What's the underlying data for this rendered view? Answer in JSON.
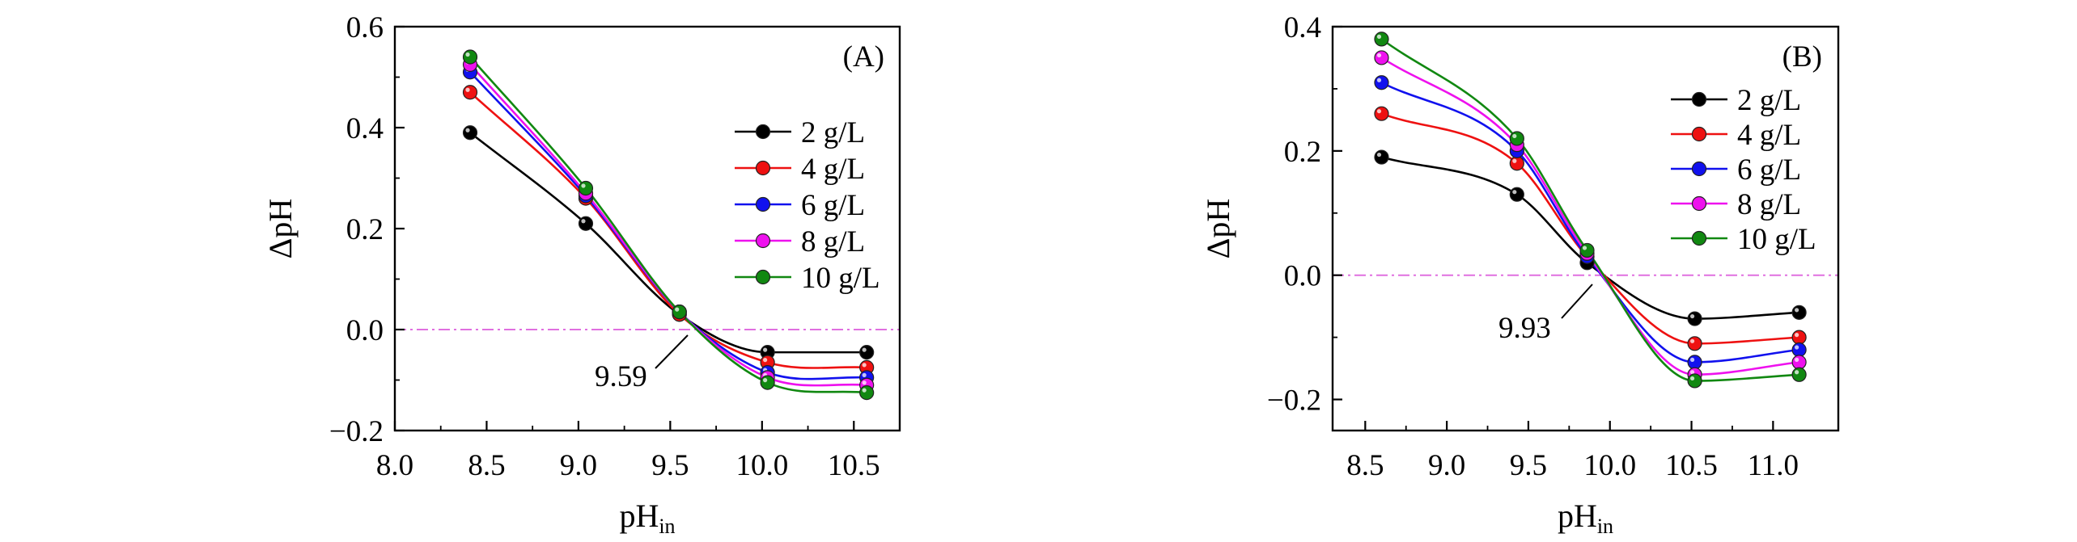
{
  "chart_data": [
    {
      "type": "line",
      "panel_label": "(A)",
      "xlabel": "pH",
      "xlabel_sub": "in",
      "ylabel": "ΔpH",
      "xlim": [
        8.0,
        10.75
      ],
      "ylim": [
        -0.2,
        0.6
      ],
      "xticks": [
        8.0,
        8.5,
        9.0,
        9.5,
        10.0,
        10.5
      ],
      "xtick_labels": [
        "8.0",
        "8.5",
        "9.0",
        "9.5",
        "10.0",
        "10.5"
      ],
      "yticks": [
        -0.2,
        0.0,
        0.2,
        0.4,
        0.6
      ],
      "ytick_labels": [
        "−0.2",
        "0.0",
        "0.2",
        "0.4",
        "0.6"
      ],
      "x": [
        8.41,
        9.04,
        9.55,
        10.03,
        10.57
      ],
      "series": [
        {
          "name": "2 g/L",
          "color": "#000000",
          "values": [
            0.39,
            0.21,
            0.03,
            -0.045,
            -0.045
          ]
        },
        {
          "name": "4 g/L",
          "color": "#ee1111",
          "values": [
            0.47,
            0.26,
            0.03,
            -0.065,
            -0.075
          ]
        },
        {
          "name": "6 g/L",
          "color": "#1111ee",
          "values": [
            0.51,
            0.265,
            0.035,
            -0.085,
            -0.095
          ]
        },
        {
          "name": "8 g/L",
          "color": "#ee11ee",
          "values": [
            0.525,
            0.27,
            0.035,
            -0.095,
            -0.11
          ]
        },
        {
          "name": "10 g/L",
          "color": "#118811",
          "values": [
            0.54,
            0.28,
            0.035,
            -0.105,
            -0.125
          ]
        }
      ],
      "reference_line": {
        "y": 0.0,
        "color": "#e070e0"
      },
      "annotation": {
        "text": "9.59",
        "x": 9.59,
        "y": 0.0
      },
      "legend_position": "right"
    },
    {
      "type": "line",
      "panel_label": "(B)",
      "xlabel": "pH",
      "xlabel_sub": "in",
      "ylabel": "ΔpH",
      "xlim": [
        8.3,
        11.4
      ],
      "ylim": [
        -0.25,
        0.4
      ],
      "xticks": [
        8.5,
        9.0,
        9.5,
        10.0,
        10.5,
        11.0
      ],
      "xtick_labels": [
        "8.5",
        "9.0",
        "9.5",
        "10.0",
        "10.5",
        "11.0"
      ],
      "yticks": [
        -0.2,
        0.0,
        0.2,
        0.4
      ],
      "ytick_labels": [
        "−0.2",
        "0.0",
        "0.2",
        "0.4"
      ],
      "x": [
        8.6,
        9.43,
        9.86,
        10.52,
        11.16
      ],
      "series": [
        {
          "name": "2 g/L",
          "color": "#000000",
          "values": [
            0.19,
            0.13,
            0.02,
            -0.07,
            -0.06
          ]
        },
        {
          "name": "4 g/L",
          "color": "#ee1111",
          "values": [
            0.26,
            0.18,
            0.03,
            -0.11,
            -0.1
          ]
        },
        {
          "name": "6 g/L",
          "color": "#1111ee",
          "values": [
            0.31,
            0.2,
            0.03,
            -0.14,
            -0.12
          ]
        },
        {
          "name": "8 g/L",
          "color": "#ee11ee",
          "values": [
            0.35,
            0.21,
            0.035,
            -0.16,
            -0.14
          ]
        },
        {
          "name": "10 g/L",
          "color": "#118811",
          "values": [
            0.38,
            0.22,
            0.04,
            -0.17,
            -0.16
          ]
        }
      ],
      "reference_line": {
        "y": 0.0,
        "color": "#e070e0"
      },
      "annotation": {
        "text": "9.93",
        "x": 9.93,
        "y": 0.0
      },
      "legend_position": "top-right"
    }
  ]
}
